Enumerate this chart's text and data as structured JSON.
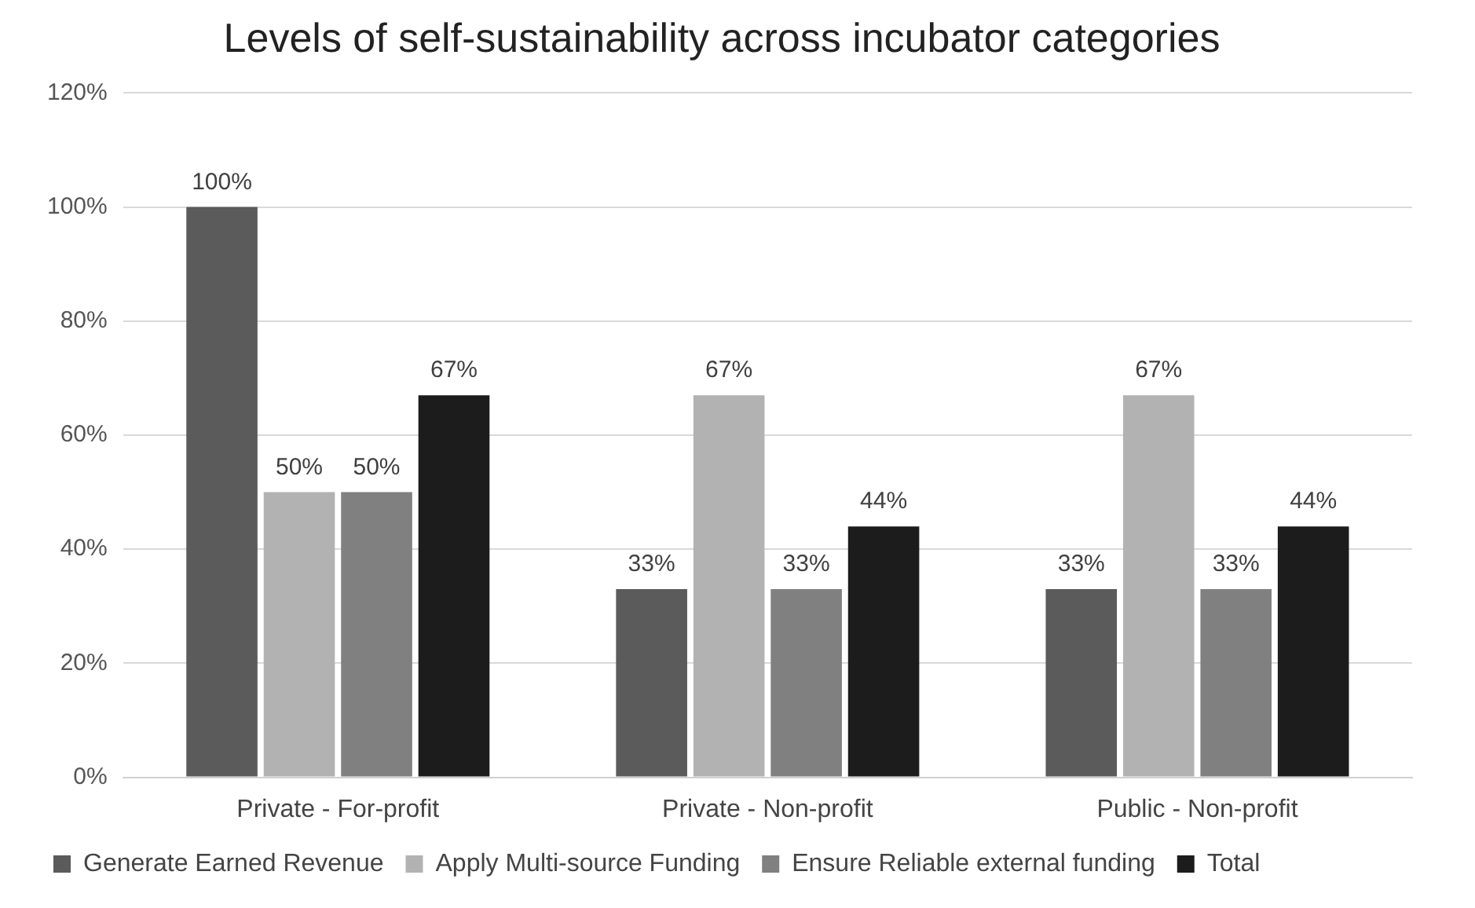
{
  "chart_data": {
    "type": "bar",
    "title": "Levels of self-sustainability across incubator categories",
    "categories": [
      "Private - For-profit",
      "Private - Non-profit",
      "Public - Non-profit"
    ],
    "series": [
      {
        "name": "Generate Earned Revenue",
        "color": "#5b5b5b",
        "values": [
          100,
          33,
          33
        ],
        "value_labels": [
          "100%",
          "33%",
          "33%"
        ]
      },
      {
        "name": "Apply Multi-source Funding",
        "color": "#b2b2b2",
        "values": [
          50,
          67,
          67
        ],
        "value_labels": [
          "50%",
          "67%",
          "67%"
        ]
      },
      {
        "name": "Ensure Reliable external funding",
        "color": "#808080",
        "values": [
          50,
          33,
          33
        ],
        "value_labels": [
          "50%",
          "33%",
          "33%"
        ]
      },
      {
        "name": "Total",
        "color": "#1c1c1c",
        "values": [
          67,
          44,
          44
        ],
        "value_labels": [
          "67%",
          "44%",
          "44%"
        ]
      }
    ],
    "ylim": [
      0,
      120
    ],
    "yticks": [
      {
        "value": 0,
        "label": "0%"
      },
      {
        "value": 20,
        "label": "20%"
      },
      {
        "value": 40,
        "label": "40%"
      },
      {
        "value": 60,
        "label": "60%"
      },
      {
        "value": 80,
        "label": "80%"
      },
      {
        "value": 100,
        "label": "100%"
      },
      {
        "value": 120,
        "label": "120%"
      }
    ],
    "grid": "y",
    "legend": "bottom"
  }
}
